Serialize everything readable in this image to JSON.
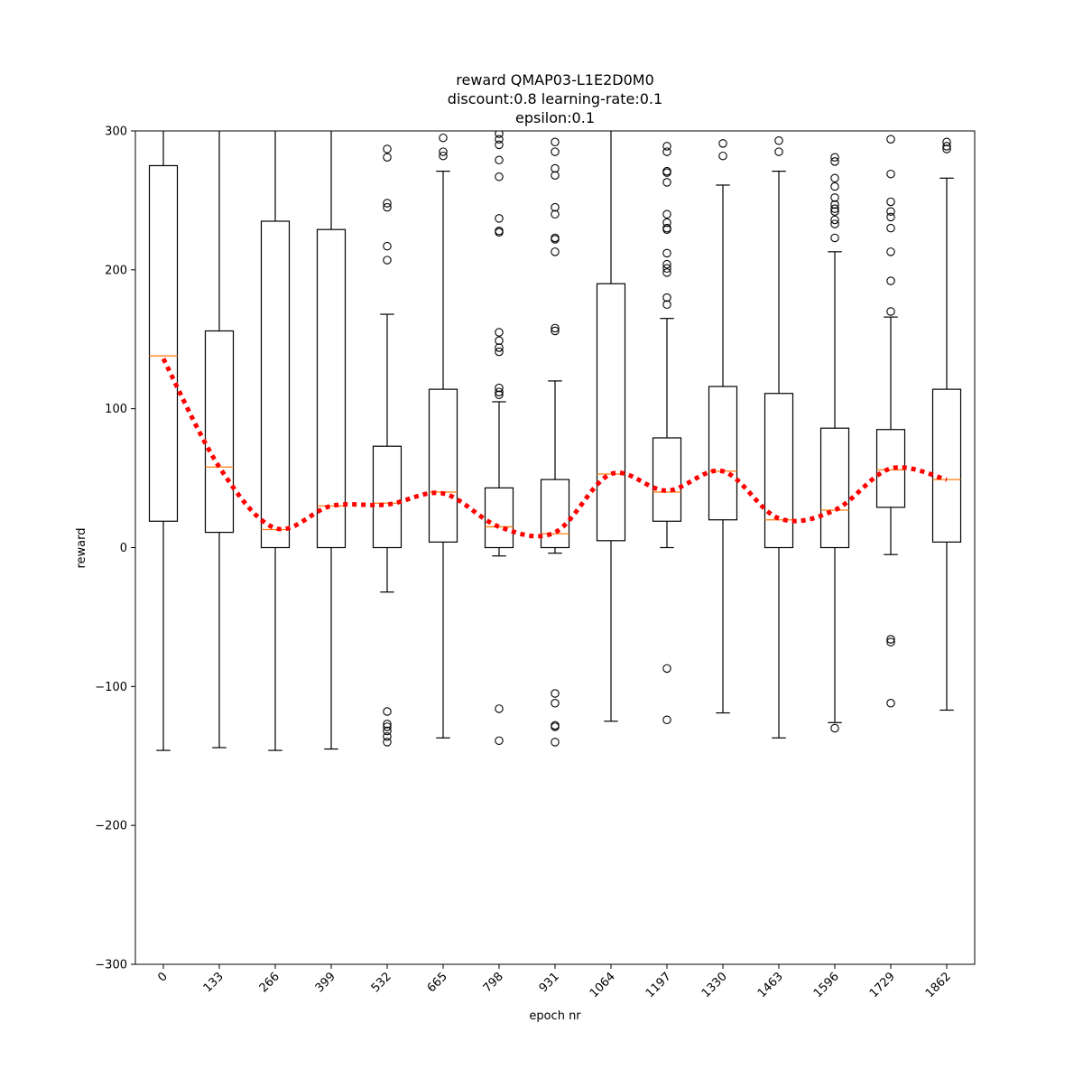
{
  "chart_data": {
    "type": "box",
    "title_lines": [
      "reward QMAP03-L1E2D0M0",
      "discount:0.8 learning-rate:0.1",
      "epsilon:0.1"
    ],
    "xlabel": "epoch nr",
    "ylabel": "reward",
    "ylim": [
      -300,
      300
    ],
    "yticks": [
      -300,
      -200,
      -100,
      0,
      100,
      200,
      300
    ],
    "ytick_labels": [
      "−300",
      "−200",
      "−100",
      "0",
      "100",
      "200",
      "300"
    ],
    "categories": [
      "0",
      "133",
      "266",
      "399",
      "532",
      "665",
      "798",
      "931",
      "1064",
      "1197",
      "1330",
      "1463",
      "1596",
      "1729",
      "1862"
    ],
    "boxes": [
      {
        "q1": 19,
        "median": 138,
        "q3": 275,
        "whisker_low": -146,
        "whisker_high": 320,
        "outliers": []
      },
      {
        "q1": 11,
        "median": 58,
        "q3": 156,
        "whisker_low": -144,
        "whisker_high": 320,
        "outliers": []
      },
      {
        "q1": 0,
        "median": 13,
        "q3": 235,
        "whisker_low": -146,
        "whisker_high": 320,
        "outliers": []
      },
      {
        "q1": 0,
        "median": 30,
        "q3": 229,
        "whisker_low": -145,
        "whisker_high": 320,
        "outliers": []
      },
      {
        "q1": 0,
        "median": 32,
        "q3": 73,
        "whisker_low": -32,
        "whisker_high": 168,
        "outliers": [
          287,
          281,
          248,
          245,
          217,
          207,
          -118,
          -127,
          -129,
          -132,
          -136,
          -140
        ]
      },
      {
        "q1": 4,
        "median": 40,
        "q3": 114,
        "whisker_low": -137,
        "whisker_high": 271,
        "outliers": [
          295,
          285,
          282
        ]
      },
      {
        "q1": 0,
        "median": 15,
        "q3": 43,
        "whisker_low": -6,
        "whisker_high": 105,
        "outliers": [
          298,
          294,
          290,
          279,
          267,
          237,
          228,
          227,
          155,
          149,
          144,
          141,
          115,
          112,
          110,
          -116,
          -139
        ]
      },
      {
        "q1": 0,
        "median": 10,
        "q3": 49,
        "whisker_low": -4,
        "whisker_high": 120,
        "outliers": [
          292,
          285,
          273,
          268,
          245,
          240,
          223,
          222,
          213,
          158,
          156,
          -105,
          -112,
          -128,
          -129,
          -140
        ]
      },
      {
        "q1": 5,
        "median": 53,
        "q3": 190,
        "whisker_low": -125,
        "whisker_high": 320,
        "outliers": []
      },
      {
        "q1": 19,
        "median": 40,
        "q3": 79,
        "whisker_low": 0,
        "whisker_high": 165,
        "outliers": [
          289,
          285,
          271,
          270,
          263,
          240,
          234,
          230,
          229,
          212,
          204,
          201,
          198,
          180,
          175,
          -87,
          -124
        ]
      },
      {
        "q1": 20,
        "median": 55,
        "q3": 116,
        "whisker_low": -119,
        "whisker_high": 261,
        "outliers": [
          291,
          282
        ]
      },
      {
        "q1": 0,
        "median": 20,
        "q3": 111,
        "whisker_low": -137,
        "whisker_high": 271,
        "outliers": [
          293,
          285
        ]
      },
      {
        "q1": 0,
        "median": 27,
        "q3": 86,
        "whisker_low": -126,
        "whisker_high": 213,
        "outliers": [
          281,
          278,
          266,
          260,
          252,
          247,
          244,
          242,
          236,
          233,
          223,
          -130
        ]
      },
      {
        "q1": 29,
        "median": 56,
        "q3": 85,
        "whisker_low": -5,
        "whisker_high": 166,
        "outliers": [
          294,
          269,
          249,
          242,
          238,
          230,
          213,
          192,
          170,
          -66,
          -68,
          -112
        ]
      },
      {
        "q1": 4,
        "median": 49,
        "q3": 114,
        "whisker_low": -117,
        "whisker_high": 266,
        "outliers": [
          292,
          289,
          287
        ]
      }
    ],
    "mean_line": [
      136,
      58,
      14,
      30,
      31,
      39,
      15,
      11,
      53,
      41,
      55,
      21,
      27,
      57,
      49
    ],
    "colors": {
      "box": "#000000",
      "median": "#ff7f0e",
      "mean_line": "#ff0000",
      "background": "#ffffff"
    },
    "grid": false,
    "legend": "none"
  }
}
